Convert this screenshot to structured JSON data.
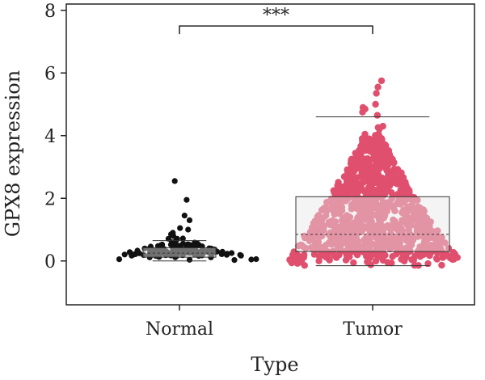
{
  "chart_data": {
    "type": "scatter",
    "subtype": "beeswarm-with-boxplot",
    "xlabel": "Type",
    "ylabel": "GPX8 expression",
    "categories": [
      "Normal",
      "Tumor"
    ],
    "ylim": [
      -1.4,
      8.2
    ],
    "yticks": [
      0,
      2,
      4,
      6,
      8
    ],
    "grid": false,
    "legend": "none",
    "significance": {
      "label": "***",
      "between": [
        "Normal",
        "Tumor"
      ],
      "y": 7.5
    },
    "series": [
      {
        "name": "Normal",
        "color": "#111111",
        "box": {
          "q1": 0.12,
          "median": 0.25,
          "q3": 0.42,
          "whisker_low": 0.0,
          "whisker_high": 0.65
        },
        "outliers": [
          2.55,
          1.95,
          1.45,
          1.3,
          1.05,
          1.0,
          0.9,
          0.85,
          0.8
        ],
        "n_points": 120,
        "distribution": {
          "low": 0.0,
          "mode": 0.2,
          "high": 0.75
        }
      },
      {
        "name": "Tumor",
        "color": "#e0506e",
        "box": {
          "q1": 0.3,
          "median": 0.85,
          "q3": 2.05,
          "whisker_low": -0.15,
          "whisker_high": 4.6
        },
        "outliers": [
          5.75,
          5.55,
          5.35,
          5.0,
          4.9,
          4.85,
          4.75,
          4.65
        ],
        "n_points": 1000,
        "distribution": {
          "low": -0.15,
          "mode": 0.4,
          "high": 4.5
        }
      }
    ]
  }
}
